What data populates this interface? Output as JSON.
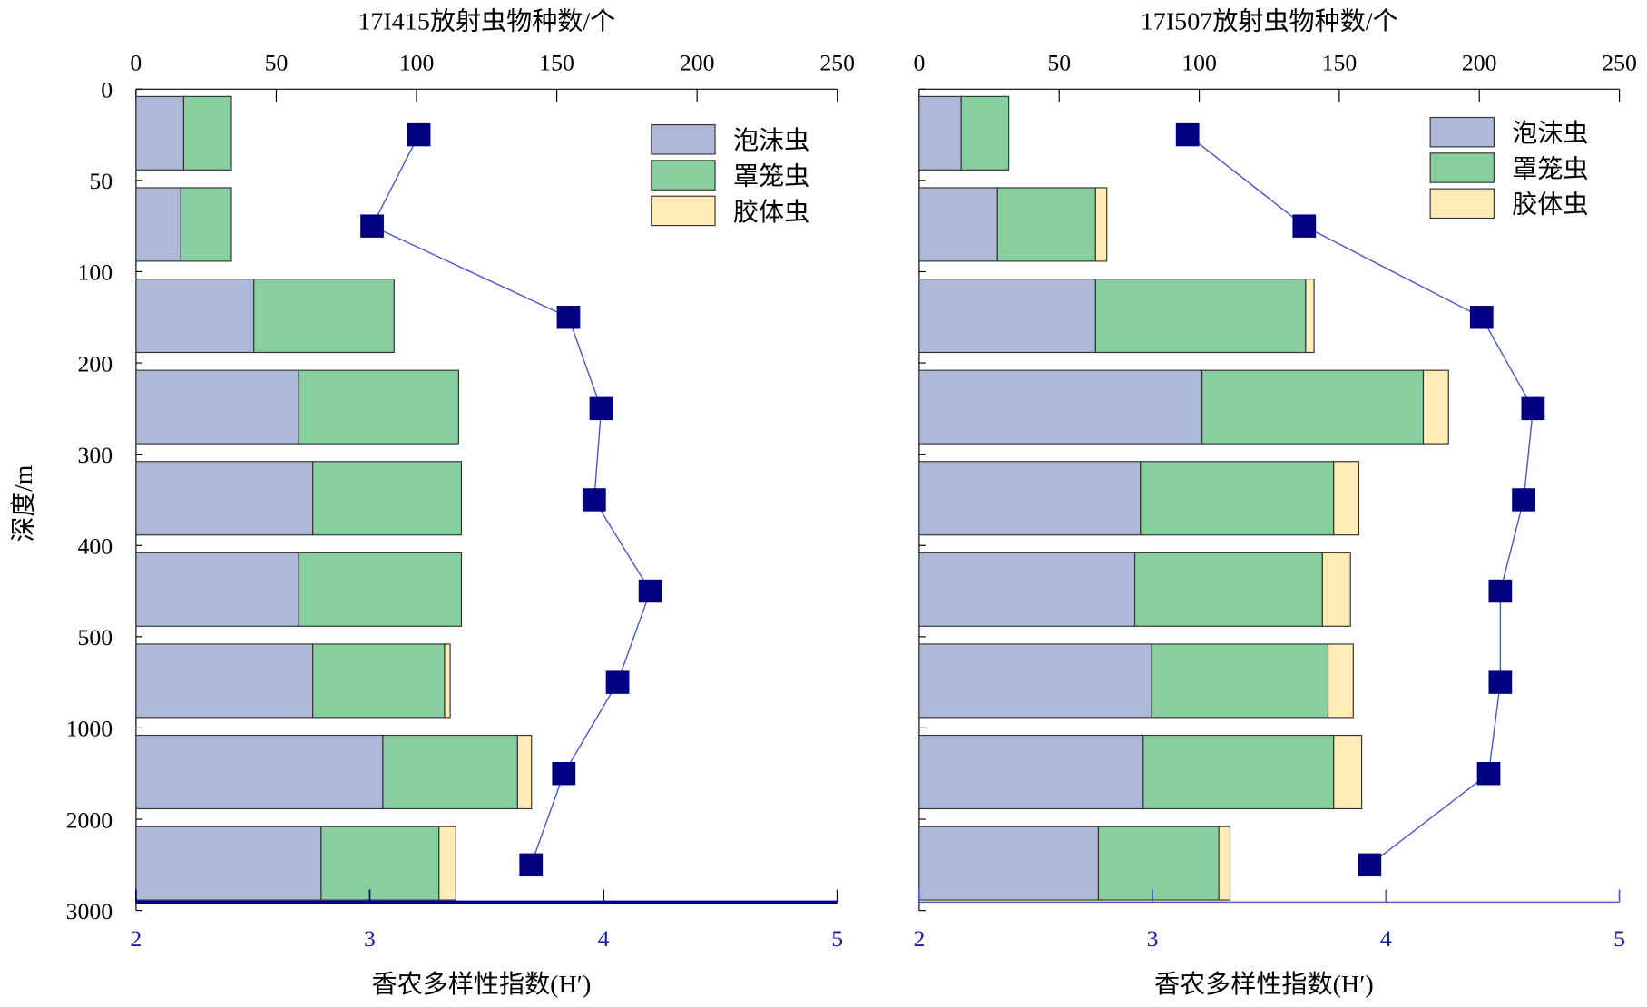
{
  "chart_data": [
    {
      "type": "bar",
      "subtype": "stacked horizontal bar + line",
      "title": "17I415放射虫物种数/个",
      "ylabel": "深度/m",
      "xlabel": "香农多样性指数(H′)",
      "depth_ticks": [
        "0",
        "50",
        "100",
        "200",
        "300",
        "400",
        "500",
        "1000",
        "2000",
        "3000"
      ],
      "top_axis": {
        "range": [
          0,
          250
        ],
        "ticks": [
          "0",
          "50",
          "100",
          "150",
          "200",
          "250"
        ]
      },
      "bottom_axis": {
        "range": [
          2,
          5
        ],
        "ticks": [
          "2",
          "3",
          "4",
          "5"
        ]
      },
      "legend": {
        "position": "top-right",
        "entries": [
          "泡沫虫",
          "罩笼虫",
          "胶体虫"
        ]
      },
      "series": [
        {
          "name": "泡沫虫",
          "color": "#AEB8D8",
          "values": [
            17,
            16,
            42,
            58,
            63,
            58,
            63,
            88,
            66
          ]
        },
        {
          "name": "罩笼虫",
          "color": "#88CFA0",
          "values": [
            17,
            18,
            50,
            57,
            53,
            58,
            47,
            48,
            42
          ]
        },
        {
          "name": "胶体虫",
          "color": "#FFEBB5",
          "values": [
            0,
            0,
            0,
            0,
            0,
            0,
            2,
            5,
            6
          ]
        }
      ],
      "diversity": {
        "name": "香农多样性指数",
        "color": "#000080",
        "values": [
          3.21,
          3.01,
          3.85,
          3.99,
          3.96,
          4.2,
          4.06,
          3.83,
          3.69
        ]
      }
    },
    {
      "type": "bar",
      "subtype": "stacked horizontal bar + line",
      "title": "17I507放射虫物种数/个",
      "ylabel": "",
      "xlabel": "香农多样性指数(H′)",
      "depth_ticks": [
        "0",
        "50",
        "100",
        "200",
        "300",
        "400",
        "500",
        "1000",
        "2000",
        "3000"
      ],
      "top_axis": {
        "range": [
          0,
          250
        ],
        "ticks": [
          "0",
          "50",
          "100",
          "150",
          "200",
          "250"
        ]
      },
      "bottom_axis": {
        "range": [
          2,
          5
        ],
        "ticks": [
          "2",
          "3",
          "4",
          "5"
        ]
      },
      "legend": {
        "position": "top-right",
        "entries": [
          "泡沫虫",
          "罩笼虫",
          "胶体虫"
        ]
      },
      "series": [
        {
          "name": "泡沫虫",
          "color": "#AEB8D8",
          "values": [
            15,
            28,
            63,
            101,
            79,
            77,
            83,
            80,
            64
          ]
        },
        {
          "name": "罩笼虫",
          "color": "#88CFA0",
          "values": [
            17,
            35,
            75,
            79,
            69,
            67,
            63,
            68,
            43
          ]
        },
        {
          "name": "胶体虫",
          "color": "#FFEBB5",
          "values": [
            0,
            4,
            3,
            9,
            9,
            10,
            9,
            10,
            4
          ]
        }
      ],
      "diversity": {
        "name": "香农多样性指数",
        "color": "#000080",
        "values": [
          3.15,
          3.65,
          4.41,
          4.63,
          4.59,
          4.49,
          4.49,
          4.44,
          3.93
        ]
      }
    }
  ]
}
